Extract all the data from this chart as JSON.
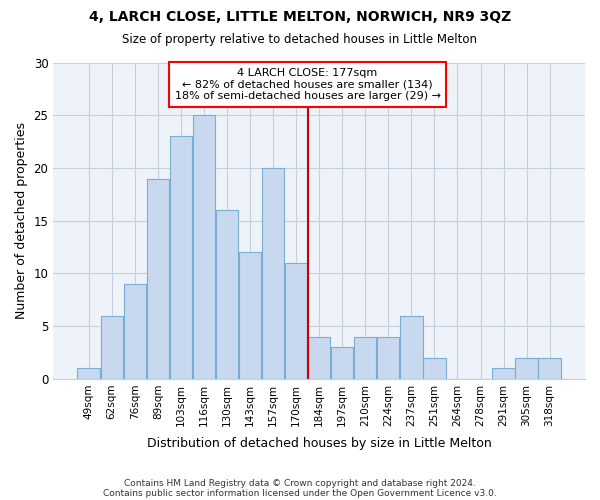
{
  "title": "4, LARCH CLOSE, LITTLE MELTON, NORWICH, NR9 3QZ",
  "subtitle": "Size of property relative to detached houses in Little Melton",
  "xlabel": "Distribution of detached houses by size in Little Melton",
  "ylabel": "Number of detached properties",
  "categories": [
    "49sqm",
    "62sqm",
    "76sqm",
    "89sqm",
    "103sqm",
    "116sqm",
    "130sqm",
    "143sqm",
    "157sqm",
    "170sqm",
    "184sqm",
    "197sqm",
    "210sqm",
    "224sqm",
    "237sqm",
    "251sqm",
    "264sqm",
    "278sqm",
    "291sqm",
    "305sqm",
    "318sqm"
  ],
  "values": [
    1,
    6,
    9,
    19,
    23,
    25,
    16,
    12,
    20,
    11,
    4,
    3,
    4,
    4,
    6,
    2,
    0,
    0,
    1,
    2,
    2
  ],
  "bar_color": "#c8d9ef",
  "bar_edge_color": "#7aadd4",
  "property_label": "4 LARCH CLOSE: 177sqm",
  "annotation_line1": "← 82% of detached houses are smaller (134)",
  "annotation_line2": "18% of semi-detached houses are larger (29) →",
  "vline_color": "#cc0000",
  "vline_bin_index": 10,
  "ylim": [
    0,
    30
  ],
  "yticks": [
    0,
    5,
    10,
    15,
    20,
    25,
    30
  ],
  "background_color": "#ffffff",
  "plot_bg_color": "#eef2f9",
  "grid_color": "#c8d0e0",
  "footer1": "Contains HM Land Registry data © Crown copyright and database right 2024.",
  "footer2": "Contains public sector information licensed under the Open Government Licence v3.0."
}
